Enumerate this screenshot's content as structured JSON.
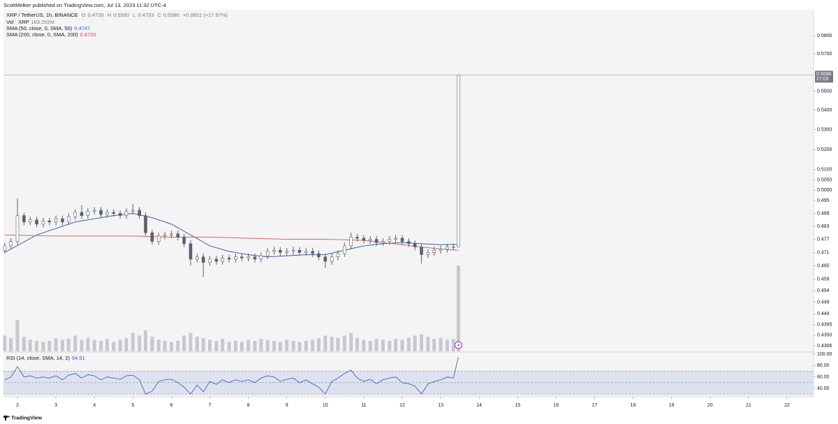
{
  "header": {
    "publisher": "ScottMelker published on TradingView.com, Jul 13, 2023 11:32 UTC-4"
  },
  "legend": {
    "symbol": "XRP / TetherUS, 1h, BINANCE",
    "ohlc_labels": [
      "O",
      "H",
      "L",
      "C"
    ],
    "ohlc_values": [
      "0.4735",
      "0.5590",
      "0.4733",
      "0.5586"
    ],
    "change": "+0.0851 (+17.97%)"
  },
  "footer": {
    "brand": "TradingView"
  },
  "chart_data": {
    "type": "candlestick",
    "log_scale": true,
    "grid": false,
    "up_color": "#ffffff",
    "down_color": "#5d606b",
    "wick_color": "#5d606b",
    "xlim": [
      1.637,
      22.69
    ],
    "xticks": [
      2,
      3,
      4,
      5,
      6,
      7,
      8,
      9,
      10,
      11,
      12,
      13,
      14,
      15,
      16,
      17,
      18,
      19,
      20,
      21,
      22
    ],
    "ylim": [
      0.4283,
      0.5947
    ],
    "yticks": [
      {
        "value": 0.58,
        "label": "0.5800"
      },
      {
        "value": 0.57,
        "label": "0.5700"
      },
      {
        "value": 0.55,
        "label": "0.5500"
      },
      {
        "value": 0.54,
        "label": "0.5400"
      },
      {
        "value": 0.53,
        "label": "0.5300"
      },
      {
        "value": 0.52,
        "label": "0.5200"
      },
      {
        "value": 0.51,
        "label": "0.5100"
      },
      {
        "value": 0.505,
        "label": "0.5050"
      },
      {
        "value": 0.5,
        "label": "0.5000"
      },
      0.495,
      0.489,
      0.483,
      0.477,
      0.471,
      0.465,
      0.459,
      0.454,
      0.449,
      0.444,
      {
        "value": 0.4395,
        "label": "0.4395"
      },
      {
        "value": 0.435,
        "label": "0.4350"
      },
      {
        "value": 0.4306,
        "label": "0.4306"
      }
    ],
    "x": [
      1.67,
      1.83,
      2,
      2.17,
      2.33,
      2.5,
      2.67,
      2.83,
      3,
      3.17,
      3.33,
      3.5,
      3.67,
      3.83,
      4,
      4.17,
      4.33,
      4.5,
      4.67,
      4.83,
      5,
      5.17,
      5.33,
      5.5,
      5.67,
      5.83,
      6,
      6.17,
      6.33,
      6.5,
      6.67,
      6.83,
      7,
      7.17,
      7.33,
      7.5,
      7.67,
      7.83,
      8,
      8.17,
      8.33,
      8.5,
      8.67,
      8.83,
      9,
      9.17,
      9.33,
      9.5,
      9.67,
      9.83,
      10,
      10.17,
      10.33,
      10.5,
      10.67,
      10.83,
      11,
      11.17,
      11.33,
      11.5,
      11.67,
      11.83,
      12,
      12.17,
      12.33,
      12.5,
      12.67,
      12.83,
      13,
      13.17,
      13.33,
      13.46
    ],
    "open": [
      0.472,
      0.474,
      0.476,
      0.488,
      0.485,
      0.486,
      0.484,
      0.4855,
      0.485,
      0.4865,
      0.485,
      0.4875,
      0.4895,
      0.488,
      0.49,
      0.4905,
      0.4885,
      0.4895,
      0.489,
      0.488,
      0.49,
      0.4905,
      0.488,
      0.48,
      0.476,
      0.4785,
      0.479,
      0.4795,
      0.478,
      0.475,
      0.468,
      0.469,
      0.4665,
      0.468,
      0.467,
      0.4685,
      0.468,
      0.469,
      0.4685,
      0.469,
      0.468,
      0.4695,
      0.4715,
      0.472,
      0.471,
      0.4715,
      0.472,
      0.471,
      0.4715,
      0.4705,
      0.469,
      0.467,
      0.469,
      0.4705,
      0.474,
      0.478,
      0.4775,
      0.4765,
      0.477,
      0.4755,
      0.476,
      0.477,
      0.4775,
      0.476,
      0.475,
      0.4735,
      0.47,
      0.471,
      0.472,
      0.4725,
      0.4735,
      0.4735
    ],
    "high": [
      0.4755,
      0.4775,
      0.496,
      0.4895,
      0.4875,
      0.4875,
      0.487,
      0.487,
      0.488,
      0.488,
      0.489,
      0.491,
      0.493,
      0.4915,
      0.492,
      0.492,
      0.491,
      0.491,
      0.4905,
      0.4915,
      0.4935,
      0.492,
      0.4895,
      0.4815,
      0.48,
      0.4805,
      0.481,
      0.481,
      0.4795,
      0.4765,
      0.4705,
      0.4705,
      0.4695,
      0.4695,
      0.47,
      0.47,
      0.4705,
      0.4705,
      0.4705,
      0.4705,
      0.471,
      0.473,
      0.4735,
      0.4735,
      0.473,
      0.4735,
      0.4735,
      0.473,
      0.473,
      0.472,
      0.4705,
      0.4705,
      0.472,
      0.4755,
      0.48,
      0.4795,
      0.479,
      0.4785,
      0.4785,
      0.4775,
      0.4785,
      0.479,
      0.479,
      0.4775,
      0.4765,
      0.475,
      0.4725,
      0.4735,
      0.474,
      0.475,
      0.475,
      0.559
    ],
    "low": [
      0.4705,
      0.4725,
      0.4745,
      0.4835,
      0.4835,
      0.4825,
      0.4825,
      0.4835,
      0.4835,
      0.4835,
      0.4835,
      0.486,
      0.4865,
      0.4865,
      0.4885,
      0.487,
      0.487,
      0.4875,
      0.4865,
      0.4865,
      0.4885,
      0.4865,
      0.4785,
      0.4745,
      0.4745,
      0.477,
      0.4775,
      0.4765,
      0.4735,
      0.465,
      0.4665,
      0.46,
      0.465,
      0.4655,
      0.4655,
      0.4665,
      0.4665,
      0.467,
      0.467,
      0.4665,
      0.4665,
      0.468,
      0.47,
      0.4695,
      0.4695,
      0.47,
      0.4695,
      0.4695,
      0.469,
      0.4675,
      0.464,
      0.4655,
      0.4675,
      0.469,
      0.4725,
      0.476,
      0.475,
      0.475,
      0.474,
      0.474,
      0.4745,
      0.4755,
      0.4745,
      0.4735,
      0.472,
      0.466,
      0.4685,
      0.4695,
      0.4705,
      0.471,
      0.472,
      0.4733
    ],
    "close": [
      0.474,
      0.476,
      0.488,
      0.485,
      0.486,
      0.484,
      0.4855,
      0.485,
      0.4865,
      0.485,
      0.4875,
      0.4895,
      0.488,
      0.49,
      0.4905,
      0.4885,
      0.4895,
      0.489,
      0.488,
      0.49,
      0.4905,
      0.488,
      0.48,
      0.476,
      0.4785,
      0.479,
      0.4795,
      0.478,
      0.475,
      0.468,
      0.469,
      0.4665,
      0.468,
      0.467,
      0.4685,
      0.468,
      0.469,
      0.4685,
      0.469,
      0.468,
      0.4695,
      0.4715,
      0.472,
      0.471,
      0.4715,
      0.472,
      0.471,
      0.4715,
      0.4705,
      0.469,
      0.467,
      0.469,
      0.4705,
      0.474,
      0.478,
      0.4775,
      0.4765,
      0.477,
      0.4755,
      0.476,
      0.477,
      0.4775,
      0.476,
      0.475,
      0.4735,
      0.47,
      0.471,
      0.472,
      0.4725,
      0.4735,
      0.4735,
      0.5586
    ],
    "last_price_label": "0.5586",
    "countdown": "27:03",
    "volume": {
      "name": "Vol · XRP",
      "value_label": "163.262M",
      "color": "#b8bbc4",
      "ylim": [
        0,
        650
      ],
      "values": [
        30,
        25,
        60,
        28,
        22,
        20,
        18,
        20,
        25,
        22,
        24,
        30,
        22,
        26,
        22,
        20,
        24,
        18,
        22,
        25,
        35,
        30,
        40,
        28,
        22,
        20,
        18,
        20,
        30,
        35,
        28,
        25,
        22,
        20,
        24,
        18,
        20,
        18,
        22,
        20,
        24,
        22,
        20,
        18,
        22,
        20,
        18,
        20,
        22,
        25,
        30,
        28,
        26,
        30,
        35,
        25,
        22,
        20,
        24,
        22,
        20,
        24,
        22,
        26,
        30,
        32,
        28,
        24,
        26,
        22,
        24,
        163.262
      ]
    },
    "series": [
      {
        "name": "SMA (50, close, 0, SMA, 50)",
        "value_label": "0.4747",
        "color": "#3f5f9e",
        "x": [
          1.67,
          2.5,
          3.5,
          4.5,
          5,
          5.5,
          6,
          6.5,
          7,
          7.5,
          8,
          8.5,
          9.5,
          10,
          10.5,
          11,
          11.5,
          12,
          12.5,
          13,
          13.46
        ],
        "values": [
          0.471,
          0.479,
          0.485,
          0.488,
          0.489,
          0.487,
          0.484,
          0.479,
          0.474,
          0.4715,
          0.47,
          0.469,
          0.47,
          0.47,
          0.472,
          0.474,
          0.475,
          0.4755,
          0.475,
          0.4745,
          0.4747
        ]
      },
      {
        "name": "SMA (200, close, 0, SMA, 200)",
        "value_label": "0.4720",
        "color": "#e0625f",
        "x": [
          1.67,
          3,
          5,
          6,
          7,
          8,
          9,
          10,
          11,
          12,
          13,
          13.46
        ],
        "values": [
          0.479,
          0.4785,
          0.4785,
          0.478,
          0.478,
          0.4775,
          0.477,
          0.477,
          0.4765,
          0.4745,
          0.4725,
          0.472
        ]
      }
    ],
    "rsi": {
      "name": "RSI (14, close, SMA, 14, 2)",
      "color": "#4a5fb0",
      "band_color": "#dde2f0",
      "band": [
        30,
        70
      ],
      "levels": [
        70,
        50,
        30
      ],
      "ylim": [
        25.3,
        102.4
      ],
      "yticks": [
        {
          "value": 100,
          "label": "100.00"
        },
        {
          "value": 80,
          "label": "80.00"
        },
        {
          "value": 60,
          "label": "60.00"
        },
        {
          "value": 40,
          "label": "40.00"
        }
      ],
      "values": [
        55,
        60,
        78,
        60,
        62,
        58,
        60,
        58,
        62,
        55,
        63,
        66,
        58,
        64,
        62,
        55,
        60,
        58,
        56,
        62,
        63,
        55,
        30,
        35,
        52,
        55,
        56,
        50,
        42,
        30,
        46,
        34,
        52,
        47,
        55,
        50,
        55,
        52,
        55,
        50,
        58,
        62,
        60,
        52,
        56,
        58,
        50,
        55,
        48,
        42,
        30,
        52,
        58,
        66,
        72,
        58,
        52,
        56,
        48,
        55,
        58,
        60,
        50,
        48,
        44,
        30,
        48,
        52,
        55,
        60,
        58,
        94.91
      ]
    }
  }
}
